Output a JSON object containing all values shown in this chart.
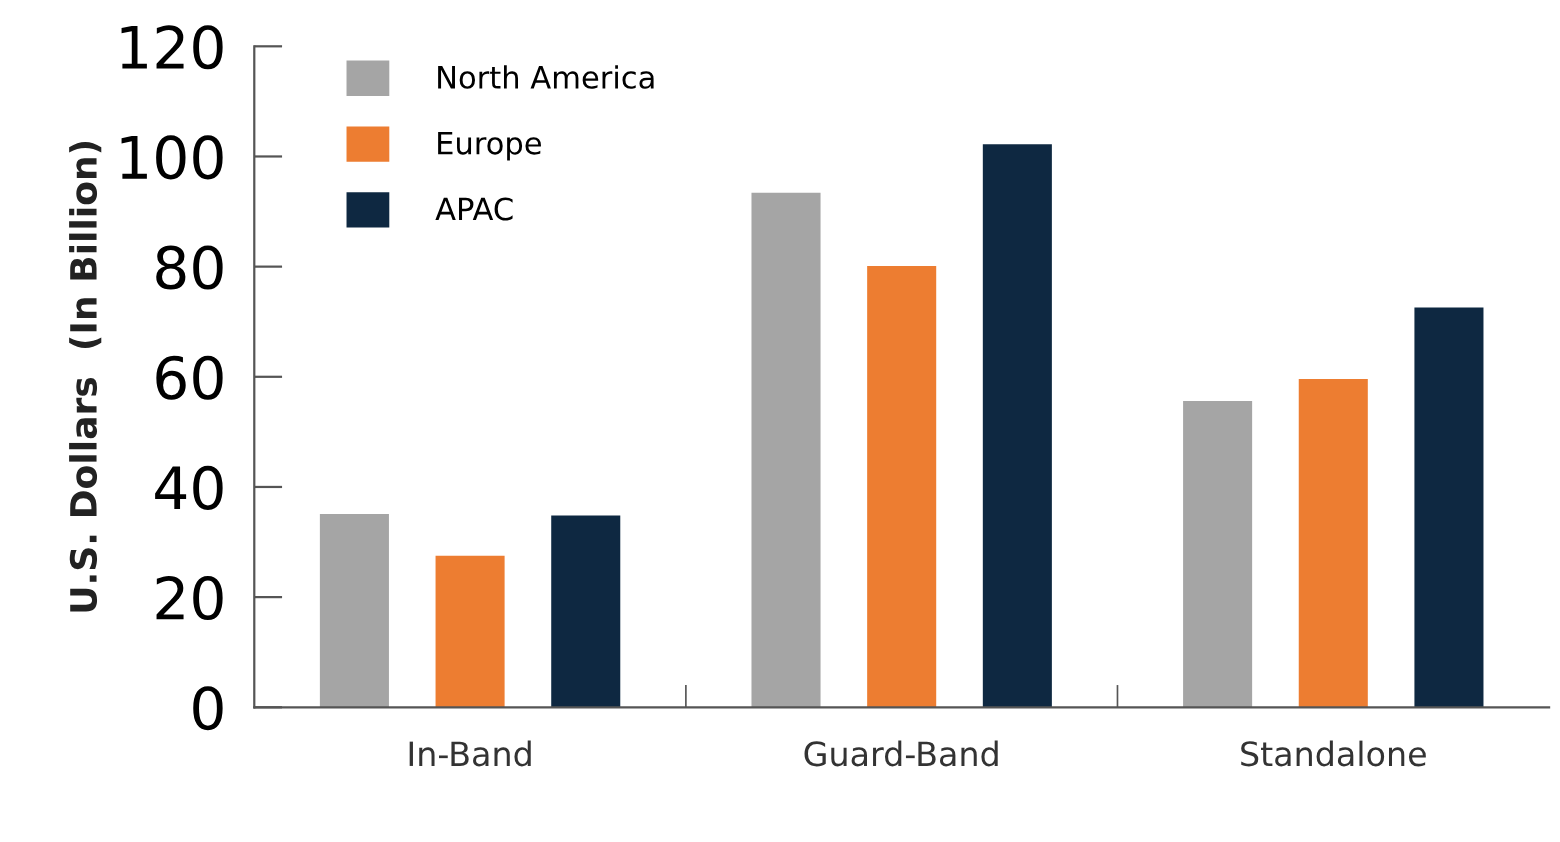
{
  "chart_data": {
    "type": "bar",
    "ylabel": "U.S. Dollars  (In Billion)",
    "categories": [
      "In-Band",
      "Guard-Band",
      "Standalone"
    ],
    "series": [
      {
        "name": "North America",
        "color": "#a5a5a5",
        "values": [
          35.1,
          93.4,
          55.6
        ]
      },
      {
        "name": "Europe",
        "color": "#ed7d31",
        "values": [
          27.5,
          80.1,
          59.6
        ]
      },
      {
        "name": "APAC",
        "color": "#0e2841",
        "values": [
          34.8,
          102.2,
          72.6
        ]
      }
    ],
    "ylim": [
      0,
      120
    ],
    "yticks": [
      0,
      20,
      40,
      60,
      80,
      100,
      120
    ],
    "grid": false,
    "legend": "top left"
  }
}
